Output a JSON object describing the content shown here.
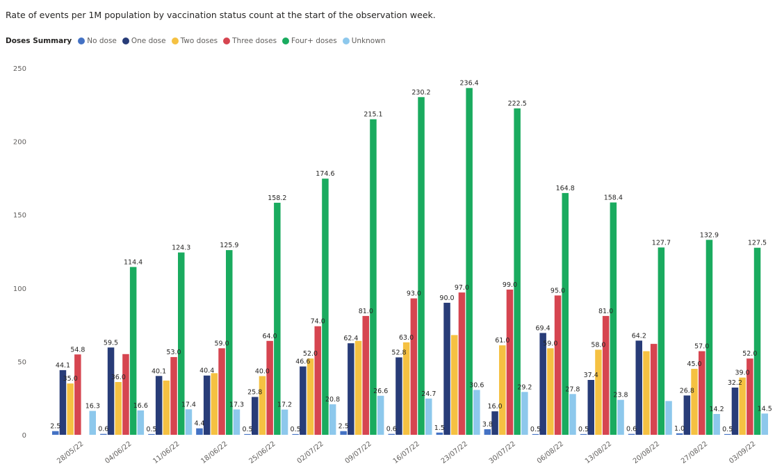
{
  "chart_data": {
    "type": "bar",
    "title": "Rate of events per 1M population by vaccination status count at the start of the observation week.",
    "legend_title": "Doses Summary",
    "legend_position": "top-left",
    "grid": false,
    "ylim": [
      0,
      250
    ],
    "yticks": [
      "0",
      "50",
      "100",
      "150",
      "200",
      "250"
    ],
    "categories": [
      "28/05/22",
      "04/06/22",
      "11/06/22",
      "18/06/22",
      "25/06/22",
      "02/07/22",
      "09/07/22",
      "16/07/22",
      "23/07/22",
      "30/07/22",
      "06/08/22",
      "13/08/22",
      "20/08/22",
      "27/08/22",
      "03/09/22"
    ],
    "series": [
      {
        "name": "No dose",
        "color": "#4472c4",
        "values": [
          2.5,
          0.6,
          0.5,
          4.4,
          0.5,
          0.5,
          2.5,
          0.6,
          1.5,
          3.8,
          0.5,
          0.5,
          0.6,
          1.0,
          0.5
        ],
        "labels": [
          "2.5",
          "0.6",
          "0.5",
          "4.4",
          "0.5",
          "0.5",
          "2.5",
          "0.6",
          "1.5",
          "3.8",
          "0.5",
          "0.5",
          "0.6",
          "1.0",
          "0.5"
        ]
      },
      {
        "name": "One dose",
        "color": "#283c78",
        "values": [
          44.1,
          59.5,
          40.1,
          40.4,
          25.8,
          46.6,
          62.4,
          52.8,
          90.0,
          16.0,
          69.4,
          37.4,
          64.2,
          26.8,
          32.2
        ],
        "labels": [
          "44.1",
          "59.5",
          "40.1",
          "40.4",
          "25.8",
          "46.6",
          "62.4",
          "52.8",
          "90.0",
          "16.0",
          "69.4",
          "37.4",
          "64.2",
          "26.8",
          "32.2"
        ]
      },
      {
        "name": "Two doses",
        "color": "#f5c142",
        "values": [
          35.0,
          36.0,
          37.0,
          42.0,
          40.0,
          52.0,
          64.0,
          63.0,
          68.0,
          61.0,
          59.0,
          58.0,
          57.0,
          45.0,
          39.0
        ],
        "labels": [
          "35.0",
          "36.0",
          "",
          "",
          "40.0",
          "52.0",
          "",
          "63.0",
          "",
          "61.0",
          "59.0",
          "58.0",
          "",
          "45.0",
          "39.0"
        ]
      },
      {
        "name": "Three doses",
        "color": "#d64550",
        "values": [
          54.8,
          55.0,
          53.0,
          59.0,
          64.0,
          74.0,
          81.0,
          93.0,
          97.0,
          99.0,
          95.0,
          81.0,
          62.0,
          57.0,
          52.0
        ],
        "labels": [
          "54.8",
          "",
          "53.0",
          "59.0",
          "64.0",
          "74.0",
          "81.0",
          "93.0",
          "97.0",
          "99.0",
          "95.0",
          "81.0",
          "",
          "57.0",
          "52.0"
        ]
      },
      {
        "name": "Four+ doses",
        "color": "#1aab5f",
        "values": [
          0,
          114.4,
          124.3,
          125.9,
          158.2,
          174.6,
          215.1,
          230.2,
          236.4,
          222.5,
          164.8,
          158.4,
          127.7,
          132.9,
          127.5
        ],
        "labels": [
          "",
          "114.4",
          "124.3",
          "125.9",
          "158.2",
          "174.6",
          "215.1",
          "230.2",
          "236.4",
          "222.5",
          "164.8",
          "158.4",
          "127.7",
          "132.9",
          "127.5"
        ]
      },
      {
        "name": "Unknown",
        "color": "#8dc8ec",
        "values": [
          16.3,
          16.6,
          17.4,
          17.3,
          17.2,
          20.8,
          26.6,
          24.7,
          30.6,
          29.2,
          27.8,
          23.8,
          23.0,
          14.2,
          14.5
        ],
        "labels": [
          "16.3",
          "16.6",
          "17.4",
          "17.3",
          "17.2",
          "20.8",
          "26.6",
          "24.7",
          "30.6",
          "29.2",
          "27.8",
          "23.8",
          "",
          "14.2",
          "14.5"
        ]
      }
    ]
  }
}
